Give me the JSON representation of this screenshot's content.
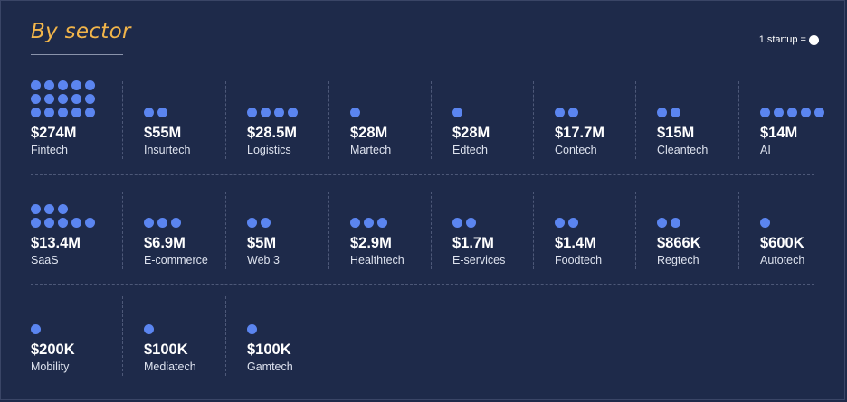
{
  "title": "By sector",
  "legend": {
    "text": "1 startup ="
  },
  "colors": {
    "background": "#1e2a4a",
    "accent": "#f2b54a",
    "dot": "#5b85f0"
  },
  "chart_data": {
    "type": "table",
    "unit_description": "1 startup = one dot",
    "rows": [
      [
        {
          "sector": "Fintech",
          "value": "$274M",
          "startups": 15
        },
        {
          "sector": "Insurtech",
          "value": "$55M",
          "startups": 2
        },
        {
          "sector": "Logistics",
          "value": "$28.5M",
          "startups": 4
        },
        {
          "sector": "Martech",
          "value": "$28M",
          "startups": 1
        },
        {
          "sector": "Edtech",
          "value": "$28M",
          "startups": 1
        },
        {
          "sector": "Contech",
          "value": "$17.7M",
          "startups": 2
        },
        {
          "sector": "Cleantech",
          "value": "$15M",
          "startups": 2
        },
        {
          "sector": "AI",
          "value": "$14M",
          "startups": 5
        }
      ],
      [
        {
          "sector": "SaaS",
          "value": "$13.4M",
          "startups": 8
        },
        {
          "sector": "E-commerce",
          "value": "$6.9M",
          "startups": 3
        },
        {
          "sector": "Web 3",
          "value": "$5M",
          "startups": 2
        },
        {
          "sector": "Healthtech",
          "value": "$2.9M",
          "startups": 3
        },
        {
          "sector": "E-services",
          "value": "$1.7M",
          "startups": 2
        },
        {
          "sector": "Foodtech",
          "value": "$1.4M",
          "startups": 2
        },
        {
          "sector": "Regtech",
          "value": "$866K",
          "startups": 2
        },
        {
          "sector": "Autotech",
          "value": "$600K",
          "startups": 1
        }
      ],
      [
        {
          "sector": "Mobility",
          "value": "$200K",
          "startups": 1
        },
        {
          "sector": "Mediatech",
          "value": "$100K",
          "startups": 1
        },
        {
          "sector": "Gamtech",
          "value": "$100K",
          "startups": 1
        }
      ]
    ]
  }
}
